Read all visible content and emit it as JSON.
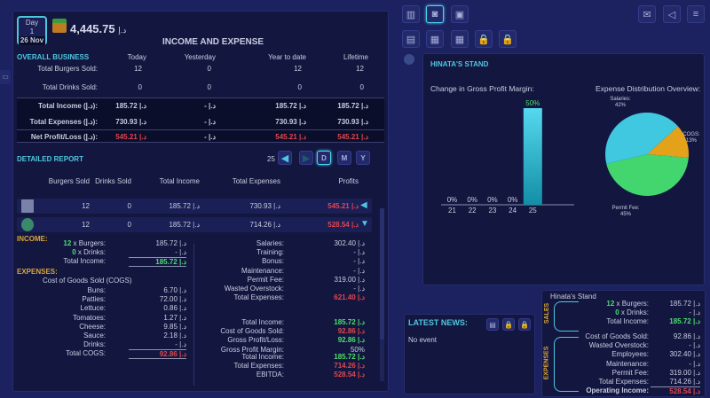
{
  "header": {
    "day_label": "Day",
    "day_num": "1",
    "date": "26 Nov",
    "cash": "4,445.75",
    "cur": "د.إ",
    "title": "INCOME AND EXPENSE"
  },
  "overall": {
    "title": "OVERALL BUSINESS",
    "cols": [
      "Today",
      "Yesterday",
      "Year to date",
      "Lifetime"
    ],
    "rows": [
      {
        "label": "Total Burgers Sold:",
        "vals": [
          "12",
          "0",
          "12",
          "12"
        ]
      },
      {
        "label": "Total Drinks Sold:",
        "vals": [
          "0",
          "0",
          "0",
          "0"
        ]
      },
      {
        "label": "Total Income (د.إ):",
        "vals": [
          "185.72 |.د",
          "- |.د",
          "185.72 |.د",
          "185.72 |.د"
        ]
      },
      {
        "label": "Total Expenses (د.إ):",
        "vals": [
          "730.93 |.د",
          "- |.د",
          "730.93 |.د",
          "730.93 |.د"
        ]
      },
      {
        "label": "Net Profit/Loss (د.إ):",
        "vals": [
          "545.21 |.د",
          "- |.د",
          "545.21 |.د",
          "545.21 |.د"
        ]
      }
    ]
  },
  "detailed": {
    "title": "DETAILED REPORT",
    "period": "25",
    "btn_day": "D",
    "btn_month": "M",
    "btn_year": "Y",
    "cols": [
      "Burgers Sold",
      "Drinks Sold",
      "Total Income",
      "Total Expenses",
      "Profits"
    ],
    "rows": [
      [
        "12",
        "0",
        "185.72 |.د",
        "730.93 |.د",
        "545.21 |.د"
      ],
      [
        "12",
        "0",
        "185.72 |.د",
        "714.26 |.د",
        "528.54 |.د"
      ]
    ]
  },
  "breakdown": {
    "income_title": "INCOME:",
    "expenses_title": "EXPENSES:",
    "cogs_title": "Cost of Goods Sold (COGS)",
    "income": [
      {
        "q": "12",
        "l": "x Burgers:",
        "v": "185.72 |.د"
      },
      {
        "q": "0",
        "l": "x Drinks:",
        "v": "- |.د"
      },
      {
        "q": "",
        "l": "Total Income:",
        "v": "185.72 |.د"
      }
    ],
    "cogs": [
      [
        "Buns:",
        "6.70 |.د"
      ],
      [
        "Patties:",
        "72.00 |.د"
      ],
      [
        "Lettuce:",
        "0.86 |.د"
      ],
      [
        "Tomatoes:",
        "1.27 |.د"
      ],
      [
        "Cheese:",
        "9.85 |.د"
      ],
      [
        "Sauce:",
        "2.18 |.د"
      ],
      [
        "Drinks:",
        "- |.د"
      ],
      [
        "Total COGS:",
        "92.86 |.د"
      ]
    ],
    "opex": [
      [
        "Salaries:",
        "302.40 |.د"
      ],
      [
        "Training:",
        "- |.د"
      ],
      [
        "Bonus:",
        "- |.د"
      ],
      [
        "Maintenance:",
        "- |.د"
      ],
      [
        "Permit Fee:",
        "319.00 |.د"
      ],
      [
        "Wasted Overstock:",
        "- |.د"
      ],
      [
        "Total Expenses:",
        "621.40 |.د"
      ]
    ],
    "gross": [
      [
        "Total Income:",
        "185.72 |.د"
      ],
      [
        "Cost of Goods Sold:",
        "92.86 |.د"
      ],
      [
        "Gross Profit/Loss:",
        "92.86 |.د"
      ],
      [
        "Gross Profit Margin:",
        "50%"
      ]
    ],
    "ebitda": [
      [
        "Total Income:",
        "185.72 |.د"
      ],
      [
        "Total Expenses:",
        "714.26 |.د"
      ],
      [
        "EBITDA:",
        "528.54 |.د"
      ]
    ]
  },
  "stand": {
    "title": "HINATA'S STAND"
  },
  "chart_data": [
    {
      "type": "bar",
      "title": "Change in Gross Profit Margin:",
      "categories": [
        "21",
        "22",
        "23",
        "24",
        "25"
      ],
      "values": [
        0,
        0,
        0,
        0,
        50
      ],
      "labels": [
        "0%",
        "0%",
        "0%",
        "0%",
        "50%"
      ],
      "ylim": [
        0,
        50
      ]
    },
    {
      "type": "pie",
      "title": "Expense Distribution Overview:",
      "slices": [
        {
          "name": "COGS:",
          "value": 13,
          "label": "13%",
          "color": "#e3a21a"
        },
        {
          "name": "Permit Fee:",
          "value": 45,
          "label": "45%",
          "color": "#43d66f"
        },
        {
          "name": "Salaries:",
          "value": 42,
          "label": "42%",
          "color": "#3fc8e0"
        }
      ]
    }
  ],
  "news": {
    "title": "LATEST NEWS:",
    "body": "No event"
  },
  "summary": {
    "title": "Hinata's Stand",
    "sales_label": "SALES",
    "expenses_label": "EXPENSES",
    "sales": [
      {
        "q": "12",
        "l": "x Burgers:",
        "v": "185.72 |.د"
      },
      {
        "q": "0",
        "l": "x Drinks:",
        "v": "- |.د"
      },
      {
        "q": "",
        "l": "Total Income:",
        "v": "185.72 |.د"
      }
    ],
    "expenses": [
      [
        "Cost of Goods Sold:",
        "92.86 |.د"
      ],
      [
        "Wasted Overstock:",
        "- |.د"
      ],
      [
        "Employees:",
        "302.40 |.د"
      ],
      [
        "Maintenance:",
        "- |.د"
      ],
      [
        "Permit Fee:",
        "319.00 |.د"
      ],
      [
        "Total Expenses:",
        "714.26 |.د"
      ]
    ],
    "operating": [
      "Operating Income:",
      "528.54 |.د"
    ]
  }
}
